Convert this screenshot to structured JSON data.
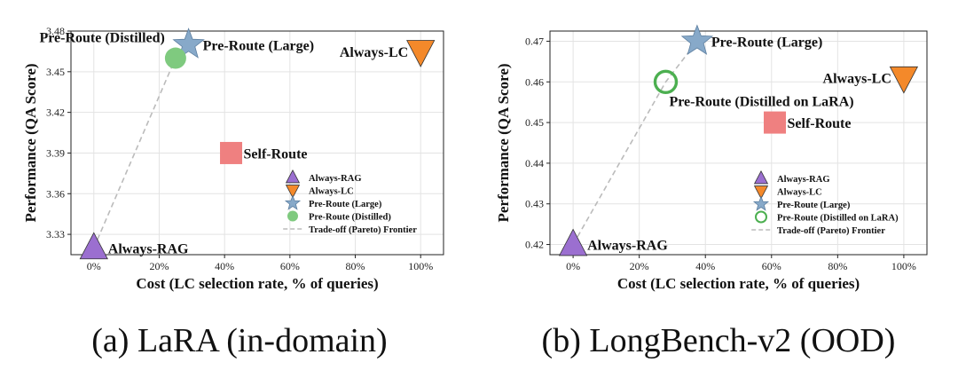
{
  "chart_data": [
    {
      "type": "scatter",
      "caption": "(a) LaRA (in-domain)",
      "xlabel": "Cost (LC selection rate, % of queries)",
      "ylabel": "Performance (QA Score)",
      "xlim": [
        -0.07,
        1.07
      ],
      "ylim": [
        3.315,
        3.48
      ],
      "xticks": [
        0,
        0.2,
        0.4,
        0.6,
        0.8,
        1.0
      ],
      "xtick_labels": [
        "0%",
        "20%",
        "40%",
        "60%",
        "80%",
        "100%"
      ],
      "yticks": [
        3.33,
        3.36,
        3.39,
        3.42,
        3.45,
        3.48
      ],
      "ytick_labels": [
        "3.33",
        "3.36",
        "3.39",
        "3.42",
        "3.45",
        "3.48"
      ],
      "grid": true,
      "legend_position": "lower-right",
      "points": [
        {
          "name": "Always-RAG",
          "x": 0.0,
          "y": 3.32,
          "label": "Always-RAG",
          "marker": "triangle-up",
          "color": "#9b6fd0",
          "hollow": false,
          "label_pos": "right"
        },
        {
          "name": "Always-LC",
          "x": 1.0,
          "y": 3.465,
          "label": "Always-LC",
          "marker": "triangle-down",
          "color": "#f4892a",
          "hollow": false,
          "label_pos": "left"
        },
        {
          "name": "Pre-Route (Large)",
          "x": 0.29,
          "y": 3.47,
          "label": "Pre-Route (Large)",
          "marker": "star",
          "color": "#87a9c9",
          "hollow": false,
          "label_pos": "right"
        },
        {
          "name": "Pre-Route (Distilled)",
          "x": 0.25,
          "y": 3.46,
          "label": "Pre-Route (Distilled)",
          "marker": "circle",
          "color": "#7fca7f",
          "hollow": false,
          "label_pos": "topleft"
        },
        {
          "name": "Self-Route",
          "x": 0.42,
          "y": 3.39,
          "label": "Self-Route",
          "marker": "square",
          "color": "#ef8080",
          "hollow": false,
          "label_pos": "right"
        }
      ],
      "frontier": [
        [
          0.0,
          3.32
        ],
        [
          0.25,
          3.46
        ],
        [
          0.29,
          3.47
        ]
      ],
      "legend": [
        {
          "marker": "triangle-up",
          "color": "#9b6fd0",
          "hollow": false,
          "label": "Always-RAG"
        },
        {
          "marker": "triangle-down",
          "color": "#f4892a",
          "hollow": false,
          "label": "Always-LC"
        },
        {
          "marker": "star",
          "color": "#87a9c9",
          "hollow": false,
          "label": "Pre-Route (Large)"
        },
        {
          "marker": "circle",
          "color": "#7fca7f",
          "hollow": false,
          "label": "Pre-Route (Distilled)"
        },
        {
          "marker": "dash",
          "color": "#bbbbbb",
          "hollow": false,
          "label": "Trade-off (Pareto) Frontier"
        }
      ]
    },
    {
      "type": "scatter",
      "caption": "(b) LongBench-v2 (OOD)",
      "xlabel": "Cost (LC selection rate, % of queries)",
      "ylabel": "Performance (QA Score)",
      "xlim": [
        -0.07,
        1.07
      ],
      "ylim": [
        0.4175,
        0.4725
      ],
      "xticks": [
        0,
        0.2,
        0.4,
        0.6,
        0.8,
        1.0
      ],
      "xtick_labels": [
        "0%",
        "20%",
        "40%",
        "60%",
        "80%",
        "100%"
      ],
      "yticks": [
        0.42,
        0.43,
        0.44,
        0.45,
        0.46,
        0.47
      ],
      "ytick_labels": [
        "0.42",
        "0.43",
        "0.44",
        "0.45",
        "0.46",
        "0.47"
      ],
      "grid": true,
      "legend_position": "lower-right",
      "points": [
        {
          "name": "Always-RAG",
          "x": 0.0,
          "y": 0.42,
          "label": "Always-RAG",
          "marker": "triangle-up",
          "color": "#9b6fd0",
          "hollow": false,
          "label_pos": "right"
        },
        {
          "name": "Always-LC",
          "x": 1.0,
          "y": 0.461,
          "label": "Always-LC",
          "marker": "triangle-down",
          "color": "#f4892a",
          "hollow": false,
          "label_pos": "left"
        },
        {
          "name": "Pre-Route (Large)",
          "x": 0.375,
          "y": 0.47,
          "label": "Pre-Route (Large)",
          "marker": "star",
          "color": "#87a9c9",
          "hollow": false,
          "label_pos": "right"
        },
        {
          "name": "Pre-Route (Distilled on LaRA)",
          "x": 0.28,
          "y": 0.46,
          "label": "Pre-Route (Distilled on LaRA)",
          "marker": "circle",
          "color": "#4caf50",
          "hollow": true,
          "label_pos": "bottomright"
        },
        {
          "name": "Self-Route",
          "x": 0.61,
          "y": 0.45,
          "label": "Self-Route",
          "marker": "square",
          "color": "#ef8080",
          "hollow": false,
          "label_pos": "right"
        }
      ],
      "frontier": [
        [
          0.0,
          0.42
        ],
        [
          0.28,
          0.46
        ],
        [
          0.375,
          0.47
        ]
      ],
      "legend": [
        {
          "marker": "triangle-up",
          "color": "#9b6fd0",
          "hollow": false,
          "label": "Always-RAG"
        },
        {
          "marker": "triangle-down",
          "color": "#f4892a",
          "hollow": false,
          "label": "Always-LC"
        },
        {
          "marker": "star",
          "color": "#87a9c9",
          "hollow": false,
          "label": "Pre-Route (Large)"
        },
        {
          "marker": "circle",
          "color": "#4caf50",
          "hollow": true,
          "label": "Pre-Route (Distilled on LaRA)"
        },
        {
          "marker": "dash",
          "color": "#bbbbbb",
          "hollow": false,
          "label": "Trade-off (Pareto) Frontier"
        }
      ]
    }
  ]
}
